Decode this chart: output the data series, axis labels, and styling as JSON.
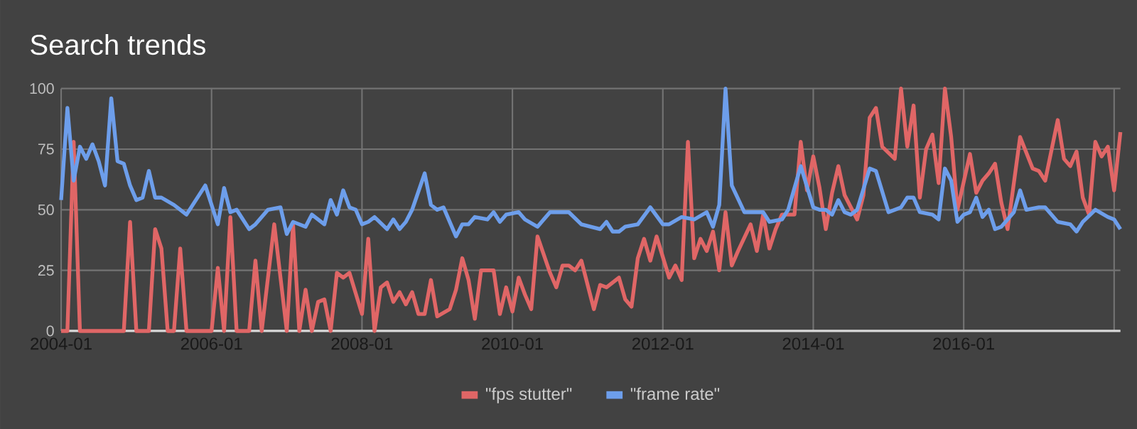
{
  "chart_data": {
    "type": "line",
    "title": "Search trends",
    "xlim": [
      "2004-01",
      "2018-02"
    ],
    "xticks": [
      {
        "value": "2004-01",
        "label": "2004-01"
      },
      {
        "value": "2006-01",
        "label": "2006-01"
      },
      {
        "value": "2008-01",
        "label": "2008-01"
      },
      {
        "value": "2010-01",
        "label": "2010-01"
      },
      {
        "value": "2012-01",
        "label": "2012-01"
      },
      {
        "value": "2014-01",
        "label": "2014-01"
      },
      {
        "value": "2016-01",
        "label": "2016-01"
      },
      {
        "value": "2018-01",
        "label": null
      }
    ],
    "ylim": [
      0,
      100
    ],
    "yticks": [
      0,
      25,
      50,
      75,
      100
    ],
    "grid": true,
    "legend": "bottom",
    "series": [
      {
        "name": "\"fps stutter\"",
        "color": "#e06666",
        "x": [
          "2004-01",
          "2004-02",
          "2004-03",
          "2004-04",
          "2004-11",
          "2004-12",
          "2005-01",
          "2005-03",
          "2005-04",
          "2005-05",
          "2005-06",
          "2005-07",
          "2005-08",
          "2005-09",
          "2006-01",
          "2006-02",
          "2006-03",
          "2006-04",
          "2006-05",
          "2006-07",
          "2006-08",
          "2006-09",
          "2006-11",
          "2007-01",
          "2007-02",
          "2007-03",
          "2007-04",
          "2007-05",
          "2007-06",
          "2007-07",
          "2007-08",
          "2007-09",
          "2007-10",
          "2007-11",
          "2008-01",
          "2008-02",
          "2008-03",
          "2008-04",
          "2008-05",
          "2008-06",
          "2008-07",
          "2008-08",
          "2008-09",
          "2008-10",
          "2008-11",
          "2008-12",
          "2009-01",
          "2009-03",
          "2009-04",
          "2009-05",
          "2009-06",
          "2009-07",
          "2009-08",
          "2009-10",
          "2009-11",
          "2009-12",
          "2010-01",
          "2010-02",
          "2010-03",
          "2010-04",
          "2010-05",
          "2010-07",
          "2010-08",
          "2010-09",
          "2010-10",
          "2010-11",
          "2010-12",
          "2011-02",
          "2011-03",
          "2011-04",
          "2011-06",
          "2011-07",
          "2011-08",
          "2011-09",
          "2011-10",
          "2011-11",
          "2011-12",
          "2012-02",
          "2012-03",
          "2012-04",
          "2012-05",
          "2012-06",
          "2012-07",
          "2012-08",
          "2012-09",
          "2012-10",
          "2012-11",
          "2012-12",
          "2013-01",
          "2013-03",
          "2013-04",
          "2013-05",
          "2013-06",
          "2013-07",
          "2013-08",
          "2013-10",
          "2013-11",
          "2013-12",
          "2014-01",
          "2014-02",
          "2014-03",
          "2014-04",
          "2014-05",
          "2014-06",
          "2014-08",
          "2014-09",
          "2014-10",
          "2014-11",
          "2014-12",
          "2015-02",
          "2015-03",
          "2015-04",
          "2015-05",
          "2015-06",
          "2015-07",
          "2015-08",
          "2015-09",
          "2015-10",
          "2015-11",
          "2015-12",
          "2016-02",
          "2016-03",
          "2016-04",
          "2016-05",
          "2016-06",
          "2016-07",
          "2016-08",
          "2016-10",
          "2016-12",
          "2017-01",
          "2017-02",
          "2017-04",
          "2017-05",
          "2017-06",
          "2017-07",
          "2017-08",
          "2017-09",
          "2017-10",
          "2017-11",
          "2017-12",
          "2018-01",
          "2018-02"
        ],
        "values": [
          0,
          0,
          78,
          0,
          0,
          45,
          0,
          0,
          42,
          34,
          0,
          0,
          34,
          0,
          0,
          26,
          0,
          47,
          0,
          0,
          29,
          0,
          44,
          0,
          44,
          0,
          17,
          0,
          12,
          13,
          0,
          24,
          22,
          24,
          7,
          38,
          0,
          18,
          20,
          12,
          16,
          11,
          16,
          7,
          7,
          21,
          6,
          9,
          17,
          30,
          21,
          5,
          25,
          25,
          7,
          18,
          8,
          22,
          15,
          9,
          39,
          24,
          18,
          27,
          27,
          25,
          29,
          9,
          19,
          18,
          22,
          13,
          10,
          30,
          38,
          29,
          39,
          22,
          27,
          21,
          78,
          30,
          38,
          33,
          41,
          25,
          49,
          27,
          33,
          44,
          33,
          48,
          34,
          42,
          48,
          48,
          78,
          58,
          72,
          59,
          42,
          57,
          68,
          56,
          46,
          56,
          88,
          92,
          76,
          71,
          100,
          76,
          93,
          55,
          75,
          81,
          61,
          100,
          80,
          50,
          73,
          57,
          62,
          65,
          69,
          53,
          42,
          80,
          67,
          66,
          62,
          87,
          71,
          68,
          74,
          55,
          48,
          78,
          72,
          76,
          58,
          82
        ]
      },
      {
        "name": "\"frame rate\"",
        "color": "#6d9eeb",
        "x": [
          "2004-01",
          "2004-02",
          "2004-03",
          "2004-04",
          "2004-05",
          "2004-06",
          "2004-07",
          "2004-08",
          "2004-09",
          "2004-10",
          "2004-11",
          "2004-12",
          "2005-01",
          "2005-02",
          "2005-03",
          "2005-04",
          "2005-05",
          "2005-07",
          "2005-09",
          "2005-12",
          "2006-02",
          "2006-03",
          "2006-04",
          "2006-05",
          "2006-07",
          "2006-08",
          "2006-10",
          "2006-12",
          "2007-01",
          "2007-02",
          "2007-04",
          "2007-05",
          "2007-07",
          "2007-08",
          "2007-09",
          "2007-10",
          "2007-11",
          "2007-12",
          "2008-01",
          "2008-02",
          "2008-03",
          "2008-05",
          "2008-06",
          "2008-07",
          "2008-08",
          "2008-09",
          "2008-11",
          "2008-12",
          "2009-01",
          "2009-02",
          "2009-03",
          "2009-04",
          "2009-05",
          "2009-06",
          "2009-07",
          "2009-09",
          "2009-10",
          "2009-11",
          "2009-12",
          "2010-02",
          "2010-03",
          "2010-05",
          "2010-07",
          "2010-10",
          "2010-12",
          "2011-03",
          "2011-04",
          "2011-05",
          "2011-06",
          "2011-07",
          "2011-09",
          "2011-11",
          "2012-01",
          "2012-02",
          "2012-04",
          "2012-06",
          "2012-08",
          "2012-09",
          "2012-10",
          "2012-11",
          "2012-12",
          "2013-02",
          "2013-04",
          "2013-05",
          "2013-06",
          "2013-08",
          "2013-09",
          "2013-11",
          "2014-01",
          "2014-02",
          "2014-03",
          "2014-04",
          "2014-05",
          "2014-06",
          "2014-07",
          "2014-08",
          "2014-10",
          "2014-11",
          "2015-01",
          "2015-03",
          "2015-04",
          "2015-05",
          "2015-06",
          "2015-08",
          "2015-09",
          "2015-10",
          "2015-11",
          "2015-12",
          "2016-01",
          "2016-02",
          "2016-03",
          "2016-04",
          "2016-05",
          "2016-06",
          "2016-07",
          "2016-09",
          "2016-10",
          "2016-11",
          "2017-01",
          "2017-02",
          "2017-04",
          "2017-06",
          "2017-07",
          "2017-08",
          "2017-10",
          "2017-12",
          "2018-01",
          "2018-02"
        ],
        "values": [
          54,
          92,
          62,
          76,
          71,
          77,
          70,
          60,
          96,
          70,
          69,
          60,
          54,
          55,
          66,
          55,
          55,
          52,
          48,
          60,
          44,
          59,
          49,
          50,
          42,
          44,
          50,
          51,
          40,
          45,
          43,
          48,
          44,
          54,
          48,
          58,
          51,
          50,
          44,
          45,
          47,
          42,
          46,
          42,
          45,
          50,
          65,
          52,
          50,
          51,
          45,
          39,
          44,
          44,
          47,
          46,
          49,
          45,
          48,
          49,
          46,
          43,
          49,
          49,
          44,
          42,
          45,
          41,
          41,
          43,
          44,
          51,
          44,
          44,
          47,
          46,
          49,
          43,
          52,
          100,
          60,
          49,
          49,
          49,
          45,
          46,
          50,
          68,
          51,
          50,
          50,
          48,
          54,
          49,
          48,
          50,
          67,
          66,
          49,
          51,
          55,
          55,
          49,
          48,
          46,
          67,
          62,
          45,
          48,
          49,
          55,
          47,
          50,
          42,
          43,
          49,
          58,
          50,
          51,
          51,
          45,
          44,
          41,
          45,
          50,
          47,
          46,
          42
        ]
      }
    ]
  }
}
